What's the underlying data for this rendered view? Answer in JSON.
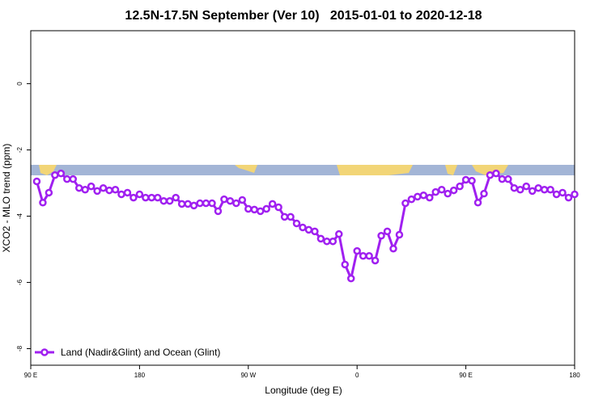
{
  "chart_data": {
    "type": "line",
    "title": "12.5N-17.5N September (Ver 10)   2015-01-01 to 2020-12-18",
    "x_label": "Longitude (deg E)",
    "y_label": "XCO2 - MLO trend (ppm)",
    "xlim": [
      -270,
      180
    ],
    "xticks": [
      {
        "value": -270,
        "label": "90 E"
      },
      {
        "value": -180,
        "label": "180"
      },
      {
        "value": -90,
        "label": "90 W"
      },
      0,
      {
        "value": 90,
        "label": "90 E"
      },
      180
    ],
    "ylim": [
      -8.5,
      1.6
    ],
    "yticks": [
      0,
      -2,
      -4,
      -6,
      -8
    ],
    "legend_position": "bottom-left",
    "x": [
      -265,
      -260,
      -255,
      -250,
      -245,
      -240,
      -235,
      -230,
      -225,
      -220,
      -215,
      -210,
      -205,
      -200,
      -195,
      -190,
      -185,
      -180,
      -175,
      -170,
      -165,
      -160,
      -155,
      -150,
      -145,
      -140,
      -135,
      -130,
      -125,
      -120,
      -115,
      -110,
      -105,
      -100,
      -95,
      -90,
      -85,
      -80,
      -75,
      -70,
      -65,
      -60,
      -55,
      -50,
      -45,
      -40,
      -35,
      -30,
      -25,
      -20,
      -15,
      -10,
      -5,
      0,
      5,
      10,
      15,
      20,
      25,
      30,
      35,
      40,
      45,
      50,
      55,
      60,
      65,
      70,
      75,
      80,
      85,
      90,
      95,
      100,
      105,
      110,
      115,
      120,
      125,
      130,
      135,
      140,
      145,
      150,
      155,
      160,
      165,
      170,
      175,
      180
    ],
    "series": [
      {
        "name": "Land (Nadir&Glint) and Ocean (Glint)",
        "color": "#a020f0",
        "values": [
          -2.95,
          -3.59,
          -3.29,
          -2.76,
          -2.71,
          -2.88,
          -2.88,
          -3.15,
          -3.2,
          -3.1,
          -3.24,
          -3.15,
          -3.22,
          -3.2,
          -3.34,
          -3.29,
          -3.44,
          -3.34,
          -3.44,
          -3.44,
          -3.44,
          -3.54,
          -3.54,
          -3.44,
          -3.63,
          -3.63,
          -3.68,
          -3.61,
          -3.61,
          -3.61,
          -3.85,
          -3.49,
          -3.54,
          -3.61,
          -3.51,
          -3.78,
          -3.8,
          -3.85,
          -3.78,
          -3.63,
          -3.73,
          -4.02,
          -4.02,
          -4.22,
          -4.34,
          -4.41,
          -4.46,
          -4.68,
          -4.76,
          -4.76,
          -4.54,
          -5.46,
          -5.88,
          -5.05,
          -5.2,
          -5.2,
          -5.34,
          -4.59,
          -4.46,
          -4.98,
          -4.56,
          -3.61,
          -3.49,
          -3.41,
          -3.37,
          -3.44,
          -3.27,
          -3.2,
          -3.32,
          -3.22,
          -3.1,
          -2.9,
          -2.93,
          -3.59,
          -3.32,
          -2.76,
          -2.71,
          -2.88,
          -2.88,
          -3.15,
          -3.2,
          -3.1,
          -3.24,
          -3.15,
          -3.2,
          -3.2,
          -3.34,
          -3.29,
          -3.44,
          -3.34
        ]
      }
    ]
  }
}
